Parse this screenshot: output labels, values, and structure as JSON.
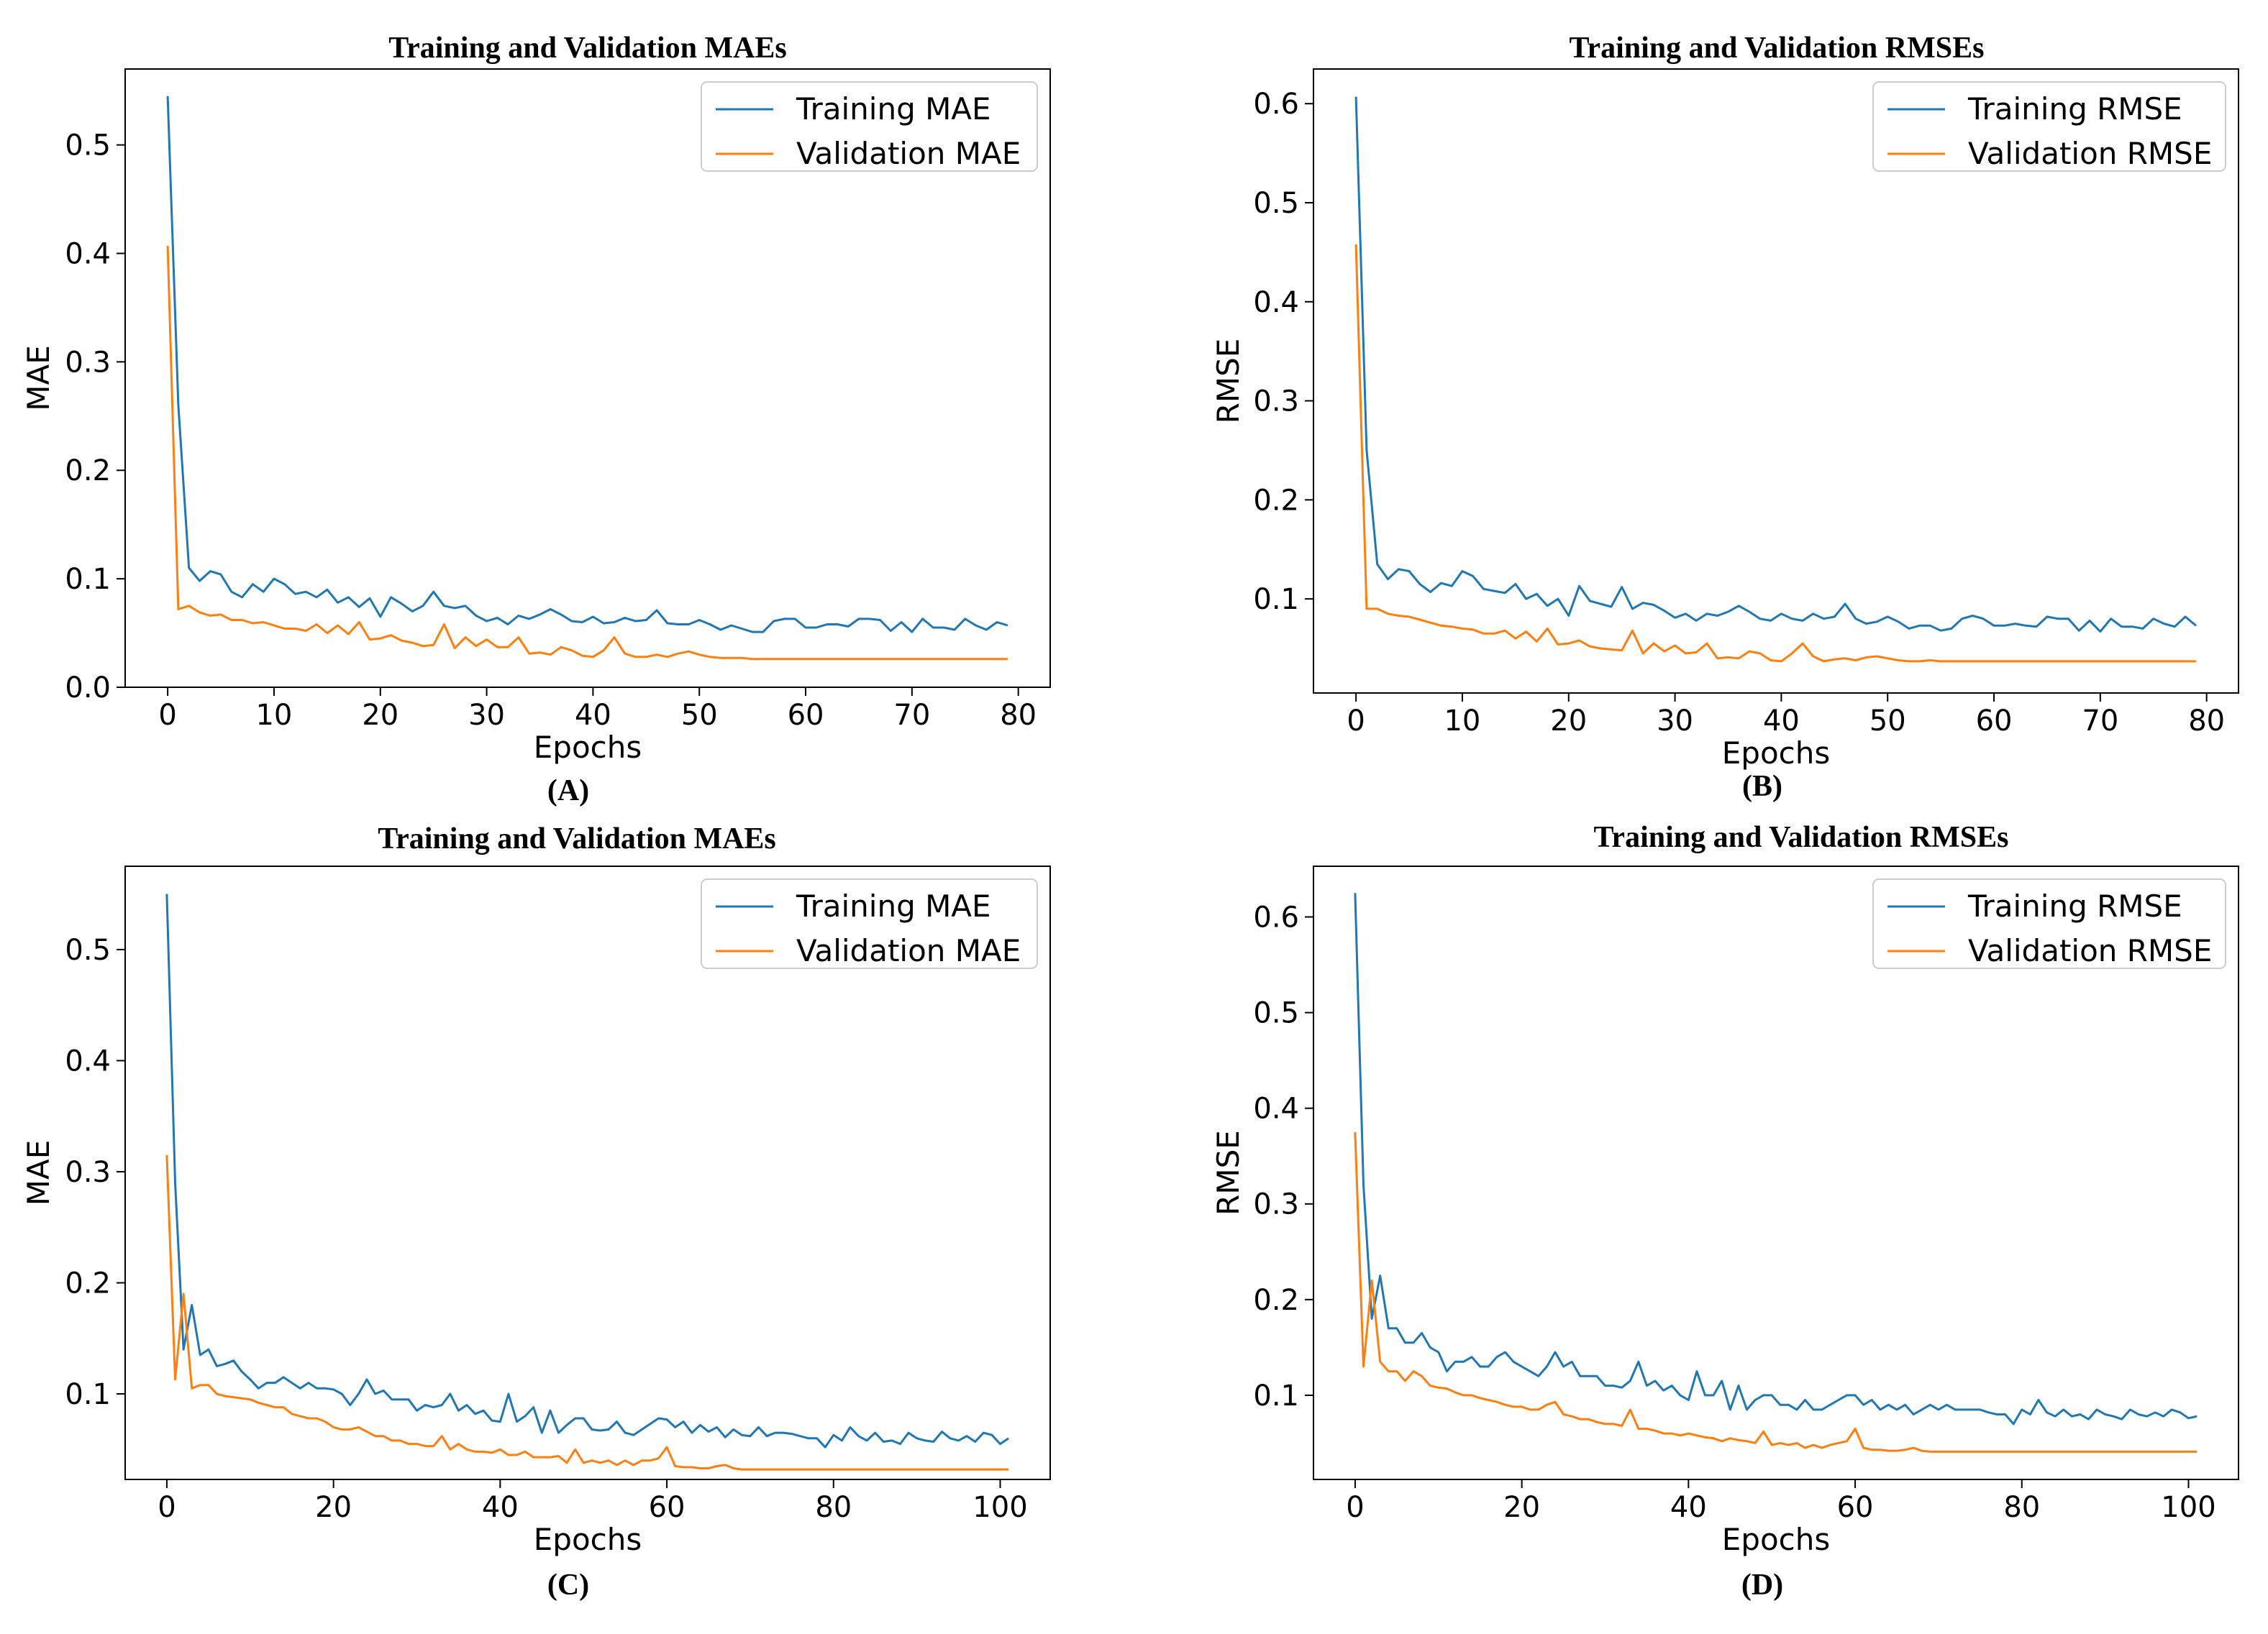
{
  "chart_data": [
    {
      "type": "line",
      "panel_label": "(A)",
      "title": "Training and Validation MAEs",
      "xlabel": "Epochs",
      "ylabel": "MAE",
      "xlim": [
        -4,
        83
      ],
      "ylim": [
        0.0,
        0.57
      ],
      "xticks": [
        0,
        10,
        20,
        30,
        40,
        50,
        60,
        70,
        80
      ],
      "yticks": [
        0.0,
        0.1,
        0.2,
        0.3,
        0.4,
        0.5
      ],
      "ytick_labels": [
        "0.0",
        "0.1",
        "0.2",
        "0.3",
        "0.4",
        "0.5"
      ],
      "legend_position": "top-right",
      "series": [
        {
          "name": "Training MAE",
          "color": "#1f77b4",
          "values": [
            0.545,
            0.26,
            0.11,
            0.098,
            0.107,
            0.104,
            0.088,
            0.083,
            0.095,
            0.088,
            0.1,
            0.095,
            0.086,
            0.088,
            0.083,
            0.09,
            0.078,
            0.083,
            0.074,
            0.082,
            0.065,
            0.083,
            0.077,
            0.07,
            0.075,
            0.088,
            0.075,
            0.073,
            0.075,
            0.066,
            0.061,
            0.064,
            0.058,
            0.066,
            0.063,
            0.067,
            0.072,
            0.067,
            0.061,
            0.06,
            0.065,
            0.059,
            0.06,
            0.064,
            0.061,
            0.062,
            0.071,
            0.059,
            0.058,
            0.058,
            0.062,
            0.058,
            0.053,
            0.057,
            0.054,
            0.051,
            0.051,
            0.061,
            0.063,
            0.063,
            0.055,
            0.055,
            0.058,
            0.058,
            0.056,
            0.063,
            0.063,
            0.062,
            0.052,
            0.06,
            0.051,
            0.063,
            0.055,
            0.055,
            0.053,
            0.063,
            0.057,
            0.053,
            0.06,
            0.057
          ]
        },
        {
          "name": "Validation MAE",
          "color": "#ff7f0e",
          "values": [
            0.407,
            0.072,
            0.075,
            0.069,
            0.066,
            0.067,
            0.062,
            0.062,
            0.059,
            0.06,
            0.057,
            0.054,
            0.054,
            0.052,
            0.058,
            0.05,
            0.057,
            0.049,
            0.06,
            0.044,
            0.045,
            0.048,
            0.043,
            0.041,
            0.038,
            0.039,
            0.058,
            0.036,
            0.046,
            0.038,
            0.044,
            0.037,
            0.037,
            0.046,
            0.031,
            0.032,
            0.03,
            0.037,
            0.034,
            0.029,
            0.028,
            0.034,
            0.046,
            0.031,
            0.028,
            0.028,
            0.03,
            0.028,
            0.031,
            0.033,
            0.03,
            0.028,
            0.027,
            0.027,
            0.027,
            0.026,
            0.026,
            0.026,
            0.026,
            0.026,
            0.026,
            0.026,
            0.026,
            0.026,
            0.026,
            0.026,
            0.026,
            0.026,
            0.026,
            0.026,
            0.026,
            0.026,
            0.026,
            0.026,
            0.026,
            0.026,
            0.026,
            0.026,
            0.026,
            0.026
          ]
        }
      ]
    },
    {
      "type": "line",
      "panel_label": "(B)",
      "title": "Training and Validation RMSEs",
      "xlabel": "Epochs",
      "ylabel": "RMSE",
      "xlim": [
        -4,
        83
      ],
      "ylim": [
        0.005,
        0.635
      ],
      "xticks": [
        0,
        10,
        20,
        30,
        40,
        50,
        60,
        70,
        80
      ],
      "yticks": [
        0.1,
        0.2,
        0.3,
        0.4,
        0.5,
        0.6
      ],
      "ytick_labels": [
        "0.1",
        "0.2",
        "0.3",
        "0.4",
        "0.5",
        "0.6"
      ],
      "legend_position": "top-right",
      "series": [
        {
          "name": "Training RMSE",
          "color": "#1f77b4",
          "values": [
            0.607,
            0.25,
            0.135,
            0.12,
            0.13,
            0.128,
            0.115,
            0.107,
            0.116,
            0.113,
            0.128,
            0.123,
            0.11,
            0.108,
            0.106,
            0.115,
            0.1,
            0.105,
            0.093,
            0.1,
            0.083,
            0.113,
            0.098,
            0.095,
            0.092,
            0.112,
            0.09,
            0.096,
            0.094,
            0.088,
            0.081,
            0.085,
            0.078,
            0.085,
            0.083,
            0.087,
            0.093,
            0.087,
            0.08,
            0.078,
            0.085,
            0.08,
            0.078,
            0.085,
            0.08,
            0.082,
            0.095,
            0.08,
            0.075,
            0.077,
            0.082,
            0.077,
            0.07,
            0.073,
            0.073,
            0.068,
            0.07,
            0.08,
            0.083,
            0.08,
            0.073,
            0.073,
            0.075,
            0.073,
            0.072,
            0.082,
            0.08,
            0.08,
            0.068,
            0.078,
            0.067,
            0.08,
            0.072,
            0.072,
            0.07,
            0.08,
            0.075,
            0.072,
            0.082,
            0.073
          ]
        },
        {
          "name": "Validation RMSE",
          "color": "#ff7f0e",
          "values": [
            0.458,
            0.09,
            0.09,
            0.085,
            0.083,
            0.082,
            0.079,
            0.076,
            0.073,
            0.072,
            0.07,
            0.069,
            0.065,
            0.065,
            0.068,
            0.06,
            0.067,
            0.057,
            0.07,
            0.054,
            0.055,
            0.058,
            0.052,
            0.05,
            0.049,
            0.048,
            0.068,
            0.045,
            0.055,
            0.047,
            0.053,
            0.045,
            0.046,
            0.055,
            0.04,
            0.041,
            0.04,
            0.047,
            0.045,
            0.038,
            0.037,
            0.045,
            0.055,
            0.042,
            0.037,
            0.039,
            0.04,
            0.038,
            0.041,
            0.042,
            0.04,
            0.038,
            0.037,
            0.037,
            0.038,
            0.037,
            0.037,
            0.037,
            0.037,
            0.037,
            0.037,
            0.037,
            0.037,
            0.037,
            0.037,
            0.037,
            0.037,
            0.037,
            0.037,
            0.037,
            0.037,
            0.037,
            0.037,
            0.037,
            0.037,
            0.037,
            0.037,
            0.037,
            0.037,
            0.037
          ]
        }
      ]
    },
    {
      "type": "line",
      "panel_label": "(C)",
      "title": "Training and Validation MAEs",
      "xlabel": "Epochs",
      "ylabel": "MAE",
      "xlim": [
        -5,
        106
      ],
      "ylim": [
        0.023,
        0.575
      ],
      "xticks": [
        0,
        20,
        40,
        60,
        80,
        100
      ],
      "yticks": [
        0.1,
        0.2,
        0.3,
        0.4,
        0.5
      ],
      "ytick_labels": [
        "0.1",
        "0.2",
        "0.3",
        "0.4",
        "0.5"
      ],
      "legend_position": "top-right",
      "series": [
        {
          "name": "Training MAE",
          "color": "#1f77b4",
          "values": [
            0.55,
            0.29,
            0.14,
            0.18,
            0.135,
            0.14,
            0.125,
            0.127,
            0.13,
            0.12,
            0.113,
            0.105,
            0.11,
            0.11,
            0.115,
            0.11,
            0.105,
            0.11,
            0.105,
            0.105,
            0.104,
            0.1,
            0.09,
            0.1,
            0.113,
            0.1,
            0.103,
            0.095,
            0.095,
            0.095,
            0.085,
            0.09,
            0.088,
            0.09,
            0.1,
            0.085,
            0.09,
            0.082,
            0.085,
            0.076,
            0.075,
            0.1,
            0.075,
            0.08,
            0.088,
            0.065,
            0.085,
            0.065,
            0.072,
            0.078,
            0.078,
            0.068,
            0.067,
            0.068,
            0.075,
            0.065,
            0.063,
            0.068,
            0.073,
            0.078,
            0.077,
            0.07,
            0.075,
            0.065,
            0.072,
            0.066,
            0.07,
            0.061,
            0.068,
            0.063,
            0.062,
            0.07,
            0.062,
            0.065,
            0.065,
            0.064,
            0.062,
            0.06,
            0.06,
            0.052,
            0.063,
            0.058,
            0.07,
            0.062,
            0.058,
            0.065,
            0.057,
            0.058,
            0.055,
            0.065,
            0.06,
            0.058,
            0.057,
            0.066,
            0.06,
            0.058,
            0.062,
            0.057,
            0.065,
            0.063,
            0.055,
            0.06
          ]
        },
        {
          "name": "Validation MAE",
          "color": "#ff7f0e",
          "values": [
            0.315,
            0.113,
            0.19,
            0.105,
            0.108,
            0.108,
            0.1,
            0.098,
            0.097,
            0.096,
            0.095,
            0.092,
            0.09,
            0.088,
            0.088,
            0.082,
            0.08,
            0.078,
            0.078,
            0.075,
            0.07,
            0.068,
            0.068,
            0.07,
            0.066,
            0.062,
            0.062,
            0.058,
            0.058,
            0.055,
            0.055,
            0.053,
            0.053,
            0.062,
            0.05,
            0.055,
            0.05,
            0.048,
            0.048,
            0.047,
            0.05,
            0.045,
            0.045,
            0.048,
            0.043,
            0.043,
            0.043,
            0.044,
            0.038,
            0.05,
            0.038,
            0.04,
            0.038,
            0.04,
            0.036,
            0.04,
            0.036,
            0.04,
            0.04,
            0.042,
            0.052,
            0.035,
            0.034,
            0.034,
            0.033,
            0.033,
            0.035,
            0.036,
            0.033,
            0.032,
            0.032,
            0.032,
            0.032,
            0.032,
            0.032,
            0.032,
            0.032,
            0.032,
            0.032,
            0.032,
            0.032,
            0.032,
            0.032,
            0.032,
            0.032,
            0.032,
            0.032,
            0.032,
            0.032,
            0.032,
            0.032,
            0.032,
            0.032,
            0.032,
            0.032,
            0.032,
            0.032,
            0.032,
            0.032,
            0.032,
            0.032,
            0.032
          ]
        }
      ]
    },
    {
      "type": "line",
      "panel_label": "(D)",
      "title": "Training and Validation RMSEs",
      "xlabel": "Epochs",
      "ylabel": "RMSE",
      "xlim": [
        -5,
        106
      ],
      "ylim": [
        0.012,
        0.653
      ],
      "xticks": [
        0,
        20,
        40,
        60,
        80,
        100
      ],
      "yticks": [
        0.1,
        0.2,
        0.3,
        0.4,
        0.5,
        0.6
      ],
      "ytick_labels": [
        "0.1",
        "0.2",
        "0.3",
        "0.4",
        "0.5",
        "0.6"
      ],
      "legend_position": "top-right",
      "series": [
        {
          "name": "Training RMSE",
          "color": "#1f77b4",
          "values": [
            0.625,
            0.32,
            0.18,
            0.225,
            0.17,
            0.17,
            0.155,
            0.155,
            0.165,
            0.15,
            0.145,
            0.125,
            0.135,
            0.135,
            0.14,
            0.13,
            0.13,
            0.14,
            0.145,
            0.135,
            0.13,
            0.125,
            0.12,
            0.13,
            0.145,
            0.13,
            0.135,
            0.12,
            0.12,
            0.12,
            0.11,
            0.11,
            0.108,
            0.115,
            0.135,
            0.11,
            0.115,
            0.105,
            0.11,
            0.1,
            0.095,
            0.125,
            0.1,
            0.1,
            0.115,
            0.085,
            0.11,
            0.085,
            0.095,
            0.1,
            0.1,
            0.09,
            0.09,
            0.085,
            0.095,
            0.085,
            0.085,
            0.09,
            0.095,
            0.1,
            0.1,
            0.09,
            0.095,
            0.085,
            0.09,
            0.085,
            0.09,
            0.08,
            0.085,
            0.09,
            0.085,
            0.09,
            0.085,
            0.085,
            0.085,
            0.085,
            0.082,
            0.08,
            0.08,
            0.07,
            0.085,
            0.08,
            0.095,
            0.082,
            0.078,
            0.085,
            0.078,
            0.08,
            0.075,
            0.085,
            0.08,
            0.078,
            0.075,
            0.085,
            0.08,
            0.078,
            0.082,
            0.078,
            0.085,
            0.082,
            0.076,
            0.078
          ]
        },
        {
          "name": "Validation RMSE",
          "color": "#ff7f0e",
          "values": [
            0.375,
            0.13,
            0.22,
            0.135,
            0.125,
            0.125,
            0.115,
            0.125,
            0.12,
            0.11,
            0.108,
            0.107,
            0.103,
            0.1,
            0.1,
            0.097,
            0.095,
            0.093,
            0.09,
            0.088,
            0.088,
            0.085,
            0.085,
            0.09,
            0.093,
            0.08,
            0.078,
            0.075,
            0.075,
            0.072,
            0.07,
            0.07,
            0.068,
            0.085,
            0.065,
            0.065,
            0.063,
            0.06,
            0.06,
            0.058,
            0.06,
            0.058,
            0.056,
            0.055,
            0.052,
            0.055,
            0.053,
            0.052,
            0.05,
            0.062,
            0.048,
            0.05,
            0.048,
            0.05,
            0.045,
            0.048,
            0.045,
            0.048,
            0.05,
            0.052,
            0.065,
            0.045,
            0.043,
            0.043,
            0.042,
            0.042,
            0.043,
            0.045,
            0.042,
            0.041,
            0.041,
            0.041,
            0.041,
            0.041,
            0.041,
            0.041,
            0.041,
            0.041,
            0.041,
            0.041,
            0.041,
            0.041,
            0.041,
            0.041,
            0.041,
            0.041,
            0.041,
            0.041,
            0.041,
            0.041,
            0.041,
            0.041,
            0.041,
            0.041,
            0.041,
            0.041,
            0.041,
            0.041,
            0.041,
            0.041,
            0.041,
            0.041
          ]
        }
      ]
    }
  ]
}
